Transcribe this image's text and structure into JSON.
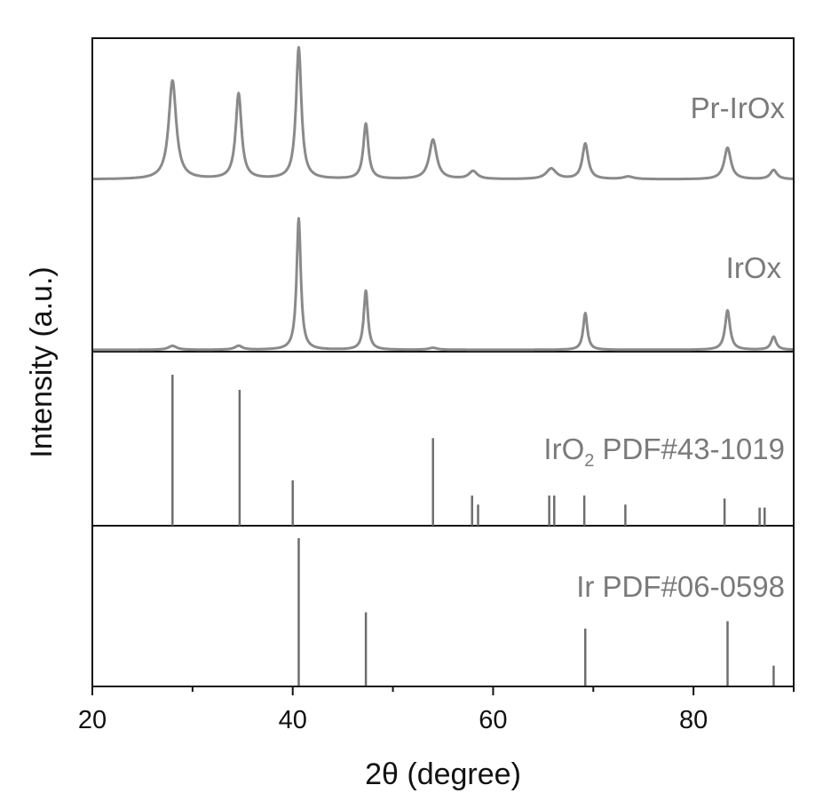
{
  "chart_data": {
    "type": "line",
    "xlabel": "2θ (degree)",
    "ylabel": "Intensity (a.u.)",
    "xlim": [
      20,
      90
    ],
    "xticks": [
      20,
      40,
      60,
      80
    ],
    "series": [
      {
        "name": "Pr-IrOx",
        "kind": "pattern",
        "peaks": [
          {
            "x": 28.0,
            "h": 0.75,
            "w": 0.45
          },
          {
            "x": 34.6,
            "h": 0.65,
            "w": 0.35
          },
          {
            "x": 40.6,
            "h": 1.0,
            "w": 0.32
          },
          {
            "x": 47.3,
            "h": 0.42,
            "w": 0.3
          },
          {
            "x": 54.0,
            "h": 0.3,
            "w": 0.45
          },
          {
            "x": 58.0,
            "h": 0.06,
            "w": 0.5
          },
          {
            "x": 65.8,
            "h": 0.08,
            "w": 0.6
          },
          {
            "x": 69.2,
            "h": 0.27,
            "w": 0.35
          },
          {
            "x": 73.5,
            "h": 0.02,
            "w": 0.6
          },
          {
            "x": 83.4,
            "h": 0.24,
            "w": 0.4
          },
          {
            "x": 88.0,
            "h": 0.07,
            "w": 0.4
          }
        ]
      },
      {
        "name": "IrOx",
        "kind": "pattern",
        "peaks": [
          {
            "x": 28.0,
            "h": 0.03,
            "w": 0.5
          },
          {
            "x": 34.6,
            "h": 0.03,
            "w": 0.45
          },
          {
            "x": 40.6,
            "h": 1.0,
            "w": 0.25
          },
          {
            "x": 47.3,
            "h": 0.45,
            "w": 0.25
          },
          {
            "x": 54.0,
            "h": 0.015,
            "w": 0.5
          },
          {
            "x": 69.2,
            "h": 0.28,
            "w": 0.25
          },
          {
            "x": 83.4,
            "h": 0.3,
            "w": 0.3
          },
          {
            "x": 88.0,
            "h": 0.1,
            "w": 0.3
          }
        ]
      },
      {
        "name": "IrO",
        "name_sub": "2",
        "name_rest": " PDF#43-1019",
        "kind": "sticks",
        "sticks": [
          {
            "x": 28.0,
            "h": 1.0
          },
          {
            "x": 34.7,
            "h": 0.9
          },
          {
            "x": 40.0,
            "h": 0.3
          },
          {
            "x": 54.0,
            "h": 0.58
          },
          {
            "x": 57.9,
            "h": 0.2
          },
          {
            "x": 58.5,
            "h": 0.14
          },
          {
            "x": 65.6,
            "h": 0.2
          },
          {
            "x": 66.1,
            "h": 0.2
          },
          {
            "x": 69.1,
            "h": 0.2
          },
          {
            "x": 73.2,
            "h": 0.14
          },
          {
            "x": 83.1,
            "h": 0.18
          },
          {
            "x": 86.6,
            "h": 0.12
          },
          {
            "x": 87.1,
            "h": 0.12
          }
        ]
      },
      {
        "name": "Ir PDF#06-0598",
        "kind": "sticks",
        "sticks": [
          {
            "x": 40.6,
            "h": 1.0
          },
          {
            "x": 47.3,
            "h": 0.5
          },
          {
            "x": 69.2,
            "h": 0.39
          },
          {
            "x": 83.4,
            "h": 0.44
          },
          {
            "x": 88.0,
            "h": 0.14
          }
        ]
      }
    ],
    "colors": {
      "pattern": "#8a8a8a",
      "stick": "#6e6e6e",
      "frame": "#111111",
      "label": "#7a7a7a"
    }
  }
}
